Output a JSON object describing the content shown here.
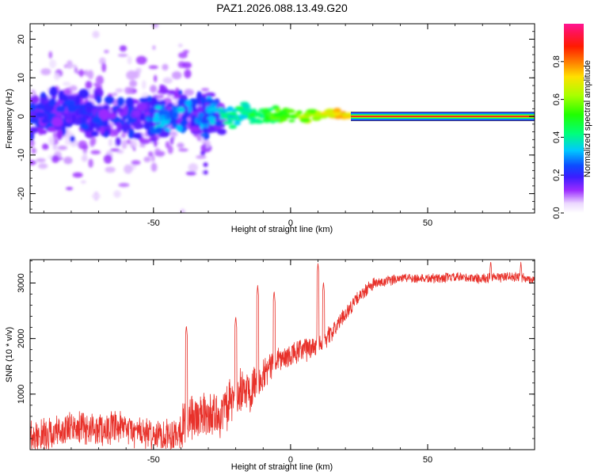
{
  "title": "PAZ1.2026.088.13.49.G20",
  "colors": {
    "line": "#e8312a",
    "axis": "#000000"
  },
  "chart_data": [
    {
      "type": "heatmap",
      "xlabel": "Height of straight line (km)",
      "ylabel": "Frequency (Hz)",
      "xlim": [
        -95,
        89
      ],
      "ylim": [
        -25,
        24
      ],
      "xticks": [
        "-50",
        "0",
        "50"
      ],
      "xtick_values": [
        -50,
        0,
        50
      ],
      "yticks": [
        "-20",
        "-10",
        "0",
        "10",
        "20"
      ],
      "ytick_values": [
        -20,
        -10,
        0,
        10,
        20
      ],
      "colorbar": {
        "label": "Normalized spectral amplitude",
        "ticks": [
          "0.0",
          "0.2",
          "0.4",
          "0.6",
          "0.8"
        ],
        "tick_values": [
          0.0,
          0.2,
          0.4,
          0.6,
          0.8
        ],
        "range": [
          0,
          1
        ],
        "colormap": "rainbow (white-violet-blue-cyan-green-yellow-red-magenta)"
      },
      "tone_line": {
        "from_km": 22,
        "to_km": 89,
        "frequency_hz": 0,
        "amplitude": 0.9
      },
      "features": [
        {
          "x_range": [
            -95,
            -30
          ],
          "freq_spread_hz": 22,
          "amplitude": "0.05-0.25",
          "note": "diffuse scatter"
        },
        {
          "x_range": [
            -30,
            22
          ],
          "freq_spread_hz": 3,
          "amplitude": "0.2-0.9",
          "note": "converging blobs"
        }
      ]
    },
    {
      "type": "line",
      "xlabel": "Height of straight line (km)",
      "ylabel": "SNR (10 * v/v)",
      "xlim": [
        -95,
        89
      ],
      "ylim": [
        0,
        3420
      ],
      "xticks": [
        "-50",
        "0",
        "50"
      ],
      "xtick_values": [
        -50,
        0,
        50
      ],
      "yticks": [
        "1000",
        "2000",
        "3000"
      ],
      "ytick_values": [
        1000,
        2000,
        3000
      ],
      "series": [
        {
          "name": "SNR",
          "trend_x": [
            -95,
            -80,
            -60,
            -50,
            -42,
            -37,
            -34,
            -30,
            -25,
            -20,
            -15,
            -12,
            -8,
            -5,
            -2,
            0,
            5,
            10,
            15,
            20,
            25,
            30,
            35,
            40,
            50,
            60,
            70,
            80,
            89
          ],
          "trend_y": [
            200,
            380,
            370,
            250,
            300,
            560,
            600,
            620,
            650,
            950,
            1120,
            1300,
            1450,
            1650,
            1620,
            1700,
            1800,
            1880,
            2100,
            2450,
            2750,
            2980,
            3020,
            3100,
            3080,
            3100,
            3080,
            3120,
            3060
          ],
          "noise_amplitude": [
            330,
            330,
            330,
            300,
            380,
            500,
            480,
            450,
            470,
            480,
            480,
            420,
            300,
            280,
            260,
            250,
            260,
            230,
            170,
            150,
            140,
            130,
            110,
            100,
            100,
            100,
            100,
            100,
            100
          ],
          "peaks": [
            [
              -38,
              2240
            ],
            [
              -20,
              2400
            ],
            [
              -12,
              2960
            ],
            [
              -6,
              2860
            ],
            [
              10,
              3360
            ],
            [
              12,
              3020
            ],
            [
              73,
              3400
            ],
            [
              84,
              3380
            ]
          ]
        }
      ]
    }
  ]
}
